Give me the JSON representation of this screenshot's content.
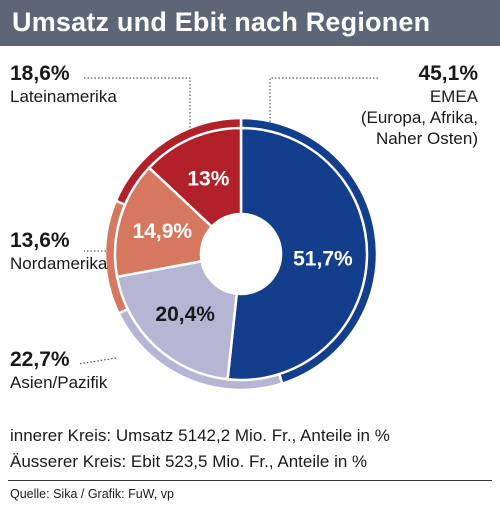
{
  "header": {
    "title": "Umsatz und Ebit nach Regionen"
  },
  "chart_data": {
    "type": "donut",
    "outer_ring": {
      "measure": "Ebit",
      "series": [
        {
          "name": "EMEA",
          "value": 45.1,
          "color": "#123e8c",
          "label": "45,1%",
          "desc_lines": [
            "EMEA",
            "(Europa, Afrika,",
            "Naher Osten)"
          ]
        },
        {
          "name": "Asien/Pazifik",
          "value": 22.7,
          "color": "#b6b5d4",
          "label": "22,7%",
          "desc_lines": [
            "Asien/Pazifik"
          ]
        },
        {
          "name": "Nordamerika",
          "value": 13.6,
          "color": "#d6785f",
          "label": "13,6%",
          "desc_lines": [
            "Nordamerika"
          ]
        },
        {
          "name": "Lateinamerika",
          "value": 18.6,
          "color": "#b2202a",
          "label": "18,6%",
          "desc_lines": [
            "Lateinamerika"
          ]
        }
      ]
    },
    "inner_ring": {
      "measure": "Umsatz",
      "series": [
        {
          "name": "EMEA",
          "value": 51.7,
          "color": "#123e8c",
          "label": "51,7%",
          "text_color": "#ffffff"
        },
        {
          "name": "Asien/Pazifik",
          "value": 20.4,
          "color": "#b6b5d4",
          "label": "20,4%",
          "text_color": "#1a1a1a"
        },
        {
          "name": "Nordamerika",
          "value": 14.9,
          "color": "#d6785f",
          "label": "14,9%",
          "text_color": "#ffffff"
        },
        {
          "name": "Lateinamerika",
          "value": 13.0,
          "color": "#b2202a",
          "label": "13%",
          "text_color": "#ffffff"
        }
      ]
    }
  },
  "notes": {
    "line1": "innerer Kreis: Umsatz 5142,2 Mio. Fr., Anteile in %",
    "line2": "Äusserer Kreis: Ebit 523,5 Mio. Fr., Anteile in %"
  },
  "footer": {
    "source": "Quelle: Sika / Grafik: FuW, vp"
  }
}
